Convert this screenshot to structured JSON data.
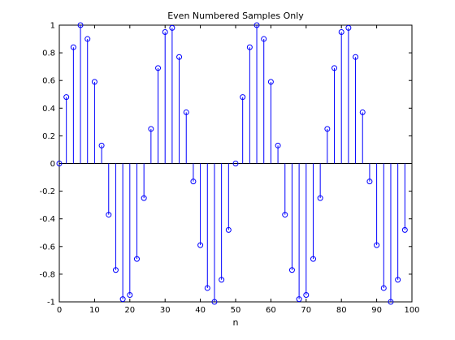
{
  "chart_data": {
    "type": "stem",
    "title": "Even Numbered Samples Only",
    "xlabel": "n",
    "ylabel": "",
    "xlim": [
      0,
      100
    ],
    "ylim": [
      -1,
      1
    ],
    "xticks": [
      "0",
      "10",
      "20",
      "30",
      "40",
      "50",
      "60",
      "70",
      "80",
      "90",
      "100"
    ],
    "yticks": [
      "-1",
      "-0.8",
      "-0.6",
      "-0.4",
      "-0.2",
      "0",
      "0.2",
      "0.4",
      "0.6",
      "0.8",
      "1"
    ],
    "grid": false,
    "legend": "none",
    "series": [
      {
        "color": "#0000ff",
        "x": [
          0,
          2,
          4,
          6,
          8,
          10,
          12,
          14,
          16,
          18,
          20,
          22,
          24,
          26,
          28,
          30,
          32,
          34,
          36,
          38,
          40,
          42,
          44,
          46,
          48,
          50,
          52,
          54,
          56,
          58,
          60,
          62,
          64,
          66,
          68,
          70,
          72,
          74,
          76,
          78,
          80,
          82,
          84,
          86,
          88,
          90,
          92,
          94,
          96,
          98
        ],
        "y": [
          0,
          0.48,
          0.84,
          1.0,
          0.9,
          0.59,
          0.13,
          -0.37,
          -0.77,
          -0.98,
          -0.95,
          -0.69,
          -0.25,
          0.25,
          0.69,
          0.95,
          0.98,
          0.77,
          0.37,
          -0.13,
          -0.59,
          -0.9,
          -1.0,
          -0.84,
          -0.48,
          0,
          0.48,
          0.84,
          1.0,
          0.9,
          0.59,
          0.13,
          -0.37,
          -0.77,
          -0.98,
          -0.95,
          -0.69,
          -0.25,
          0.25,
          0.69,
          0.95,
          0.98,
          0.77,
          0.37,
          -0.13,
          -0.59,
          -0.9,
          -1.0,
          -0.84,
          -0.48
        ]
      }
    ]
  }
}
